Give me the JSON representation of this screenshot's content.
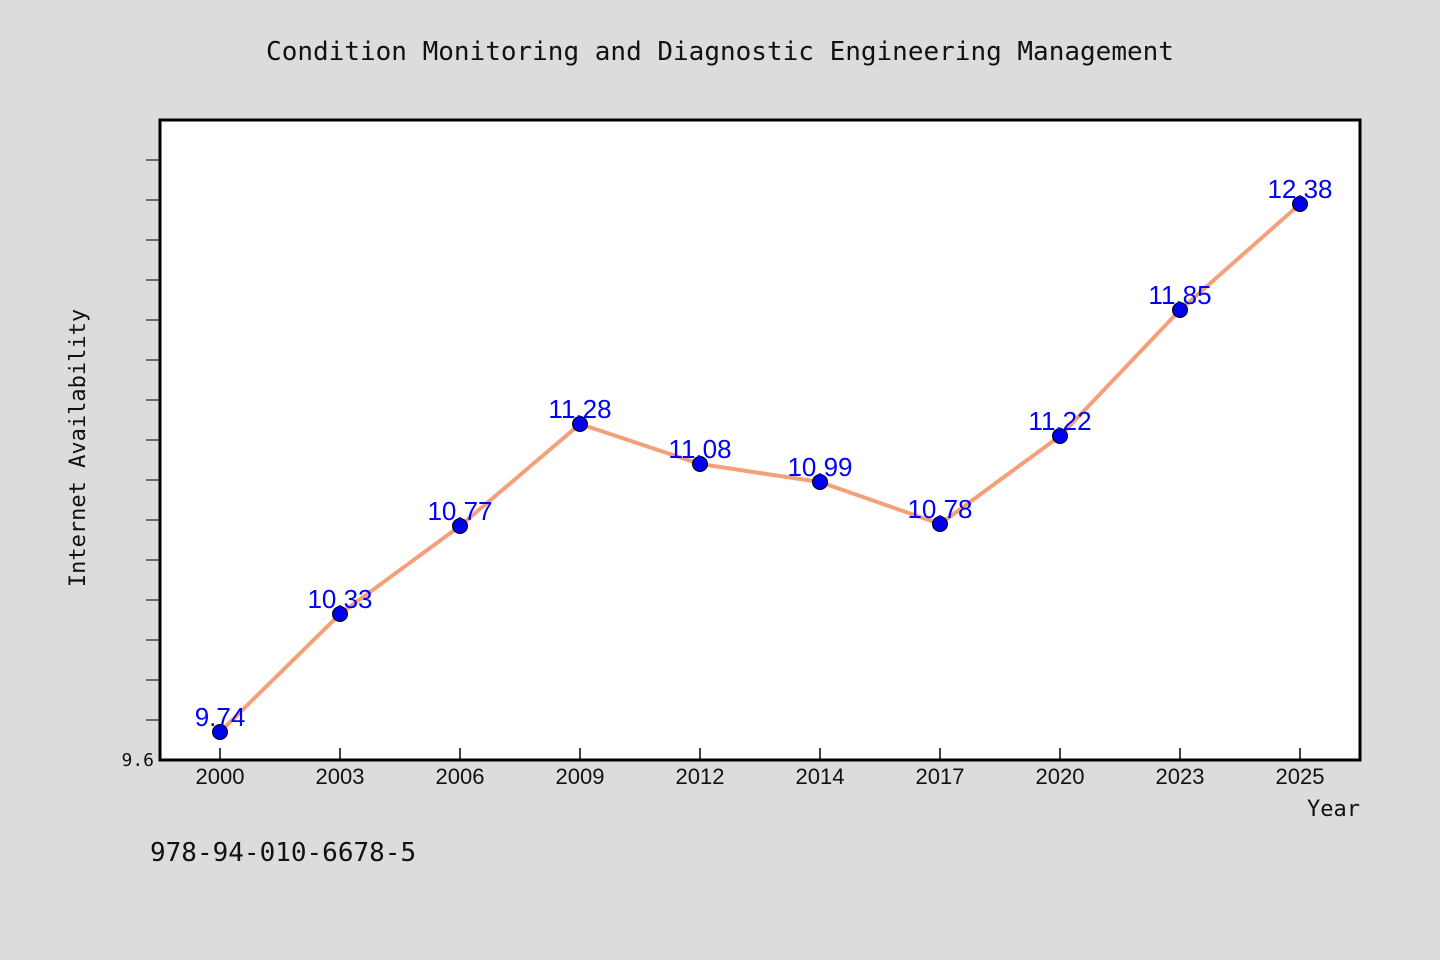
{
  "colors": {
    "background": "#dcdcdc",
    "plot_background": "#ffffff",
    "line": "#f4a07a",
    "marker": "#0000ee",
    "data_label": "#0000ff",
    "text": "#111111"
  },
  "isbn": "978-94-010-6678-5",
  "chart_data": {
    "type": "line",
    "title": "Condition Monitoring and Diagnostic Engineering Management",
    "xlabel": "Year",
    "ylabel": "Internet Availability",
    "categories": [
      "2000",
      "2003",
      "2006",
      "2009",
      "2012",
      "2014",
      "2017",
      "2020",
      "2023",
      "2025"
    ],
    "series": [
      {
        "values": [
          9.74,
          10.33,
          10.77,
          11.28,
          11.08,
          10.99,
          10.78,
          11.22,
          11.85,
          12.38
        ]
      }
    ],
    "data_labels": [
      "9.74",
      "10.33",
      "10.77",
      "11.28",
      "11.08",
      "10.99",
      "10.78",
      "11.22",
      "11.85",
      "12.38"
    ],
    "y_tick_labels": [
      "9.6"
    ],
    "ylim": [
      9.6,
      12.8
    ],
    "y_minor_tick_step": 0.2,
    "grid": false,
    "legend": "none"
  }
}
